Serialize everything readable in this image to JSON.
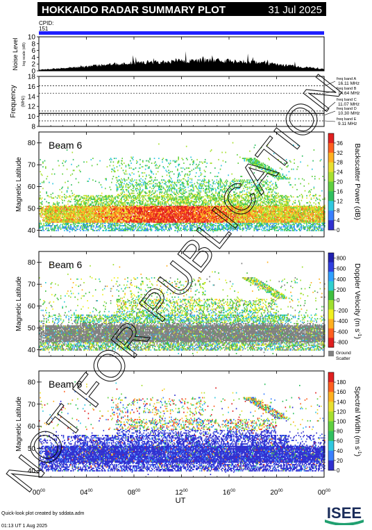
{
  "header": {
    "title": "HOKKAIDO RADAR SUMMARY PLOT",
    "date": "31 Jul 2025"
  },
  "cpid": {
    "label": "CPID:",
    "value": "151"
  },
  "colors": {
    "header_bg": "#000000",
    "cpid_bar": "#1f1fff",
    "ground_scatter": "#808080"
  },
  "chart_data": [
    {
      "type": "area",
      "panel": "noise",
      "ylabel": "Noise Level",
      "yunit": "log scale (dB)",
      "ylim": [
        0,
        10
      ],
      "yticks": [
        0,
        2,
        4,
        6,
        8,
        10
      ],
      "x": [
        0,
        2,
        4,
        6,
        8,
        10,
        12,
        14,
        16,
        18,
        20,
        22,
        24
      ],
      "values": [
        0.3,
        0.8,
        1.3,
        1.9,
        2.4,
        2.6,
        2.9,
        3.1,
        2.9,
        2.5,
        2.0,
        1.2,
        0.5
      ]
    },
    {
      "type": "line",
      "panel": "frequency",
      "ylabel": "Frequency",
      "yunit": "(MHz)",
      "ylim": [
        8,
        18
      ],
      "yticks": [
        8,
        10,
        12,
        14,
        16,
        18
      ],
      "solid_line": 10.6,
      "band_lines": [
        16.11,
        14.64,
        11.07,
        10.3,
        9.11
      ],
      "bands": [
        {
          "label": "freq band A",
          "freq": "16.11 MHz"
        },
        {
          "label": "freq band B",
          "freq": "14.64 MHz"
        },
        {
          "label": "freq band C",
          "freq": "11.07 MHz"
        },
        {
          "label": "freq band D",
          "freq": "10.30 MHz"
        },
        {
          "label": "freq band E",
          "freq": "9.11 MHz"
        }
      ]
    },
    {
      "type": "heatmap",
      "panel": "power",
      "beam": "Beam  6",
      "ylabel": "Magnetic Latitude",
      "ylim": [
        37,
        85
      ],
      "yticks": [
        40,
        50,
        60,
        70,
        80
      ],
      "colorbar_label": "Backscatter Power (dB)",
      "colorbar_ticks": [
        "0",
        "4",
        "8",
        "12",
        "16",
        "20",
        "24",
        "28",
        "32",
        "36"
      ],
      "colorbar_colors": [
        "#3030d0",
        "#3a80ff",
        "#30c8e0",
        "#30c060",
        "#60d040",
        "#a8e030",
        "#e8e030",
        "#ffb020",
        "#ff6020",
        "#e02020"
      ]
    },
    {
      "type": "heatmap",
      "panel": "velocity",
      "beam": "Beam  6",
      "ylabel": "Magnetic Latitude",
      "ylim": [
        37,
        85
      ],
      "yticks": [
        40,
        50,
        60,
        70,
        80
      ],
      "colorbar_label": "Doppler Velocity (m s",
      "colorbar_label_sup": "-1",
      "colorbar_ticks": [
        "800",
        "600",
        "400",
        "200",
        "0",
        "-200",
        "-400",
        "-600",
        "-800"
      ],
      "colorbar_colors": [
        "#2020b0",
        "#3040e0",
        "#30a0ff",
        "#30d0d0",
        "#40c040",
        "#a0e030",
        "#f0f020",
        "#ffb020",
        "#ff6020",
        "#e02020"
      ],
      "ground_scatter_label": [
        "Ground",
        "Scatter"
      ]
    },
    {
      "type": "heatmap",
      "panel": "width",
      "beam": "Beam  6",
      "ylabel": "Magnetic Latitude",
      "ylim": [
        37,
        85
      ],
      "yticks": [
        40,
        50,
        60,
        70,
        80
      ],
      "colorbar_label": "Spectral Width (m s",
      "colorbar_label_sup": "-1",
      "colorbar_ticks": [
        "0",
        "20",
        "40",
        "60",
        "80",
        "100",
        "120",
        "140",
        "160",
        "180"
      ],
      "colorbar_colors": [
        "#3030d0",
        "#3a80ff",
        "#30c8e0",
        "#30c060",
        "#60d040",
        "#a8e030",
        "#e8e030",
        "#ffb020",
        "#ff6020",
        "#e02020"
      ]
    }
  ],
  "xaxis": {
    "label": "UT",
    "range": [
      0,
      24
    ],
    "ticks": [
      {
        "hour": 0,
        "label": "00",
        "sup": "00"
      },
      {
        "hour": 4,
        "label": "04",
        "sup": "00"
      },
      {
        "hour": 8,
        "label": "08",
        "sup": "00"
      },
      {
        "hour": 12,
        "label": "12",
        "sup": "00"
      },
      {
        "hour": 16,
        "label": "16",
        "sup": "00"
      },
      {
        "hour": 20,
        "label": "20",
        "sup": "00"
      },
      {
        "hour": 24,
        "label": "00",
        "sup": "00"
      }
    ]
  },
  "watermark": "NOT FOR PUBLICATION",
  "footer": {
    "line1": "Quick-look plot created by sddata.adm",
    "line2": "01:13 UT  1 Aug 2025"
  },
  "logo": {
    "text": "ISEE"
  }
}
